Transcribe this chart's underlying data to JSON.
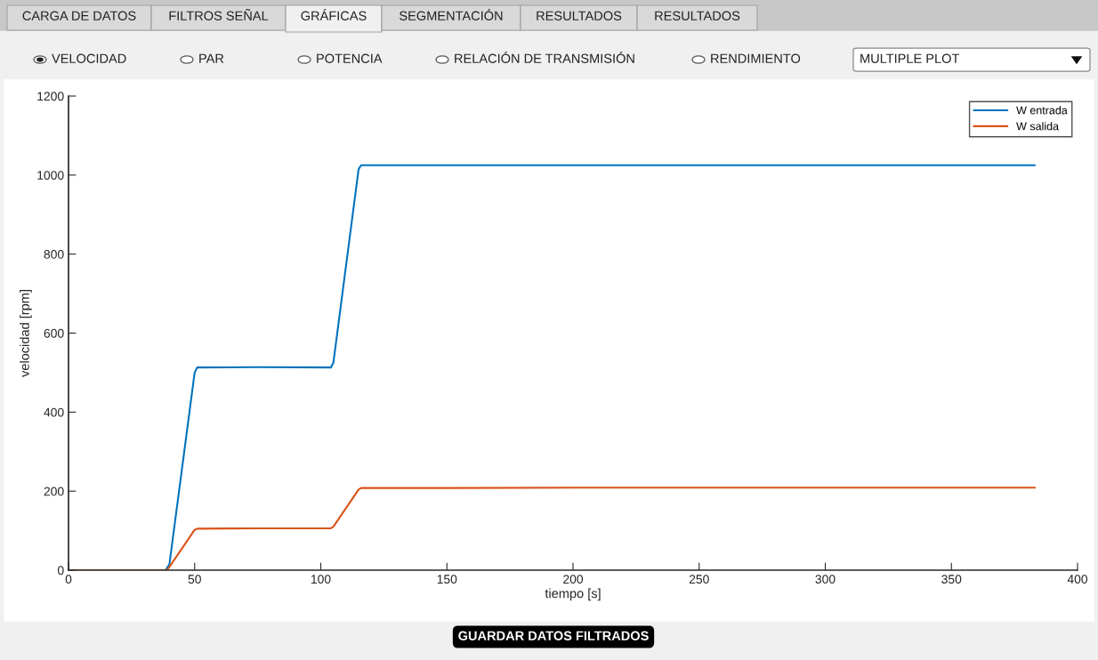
{
  "chart_data": {
    "type": "line",
    "xlabel": "tiempo [s]",
    "ylabel": "velocidad [rpm]",
    "xlim": [
      0,
      400
    ],
    "xticks": [
      0,
      50,
      100,
      150,
      200,
      250,
      300,
      350,
      400
    ],
    "ylim": [
      0,
      1200
    ],
    "yticks": [
      0,
      200,
      400,
      600,
      800,
      1000,
      1200
    ],
    "grid": false,
    "legend": "top right",
    "marker": "none",
    "line_style": "solid",
    "series": [
      {
        "name": "W entrada",
        "color": "#0072bd",
        "x": [
          0,
          38.5,
          40,
          50,
          51,
          75,
          104,
          105,
          115,
          116,
          150,
          200,
          250,
          300,
          350,
          383
        ],
        "values": [
          0,
          0,
          15,
          500,
          513,
          514,
          513,
          525,
          1015,
          1025,
          1025,
          1025,
          1025,
          1025,
          1025,
          1025
        ]
      },
      {
        "name": "W salida",
        "color": "#d95319",
        "x": [
          0,
          39,
          40,
          50,
          51,
          75,
          104,
          105,
          115,
          116,
          150,
          200,
          250,
          300,
          350,
          383
        ],
        "values": [
          0,
          0,
          8,
          102,
          105,
          106,
          106,
          110,
          204,
          208,
          208,
          209,
          209,
          209,
          209,
          209
        ]
      }
    ],
    "annotations": [
      "CARGA DE DATOS",
      "FILTROS SEÑAL",
      "GRÁFICAS",
      "SEGMENTACIÓN",
      "RESULTADOS",
      "RESULTADOS",
      "VELOCIDAD",
      "PAR",
      "POTENCIA",
      "RELACIÓN DE TRANSMISIÓN",
      "RENDIMIENTO",
      "MULTIPLE PLOT",
      "GUARDAR DATOS FILTRADOS"
    ]
  }
}
